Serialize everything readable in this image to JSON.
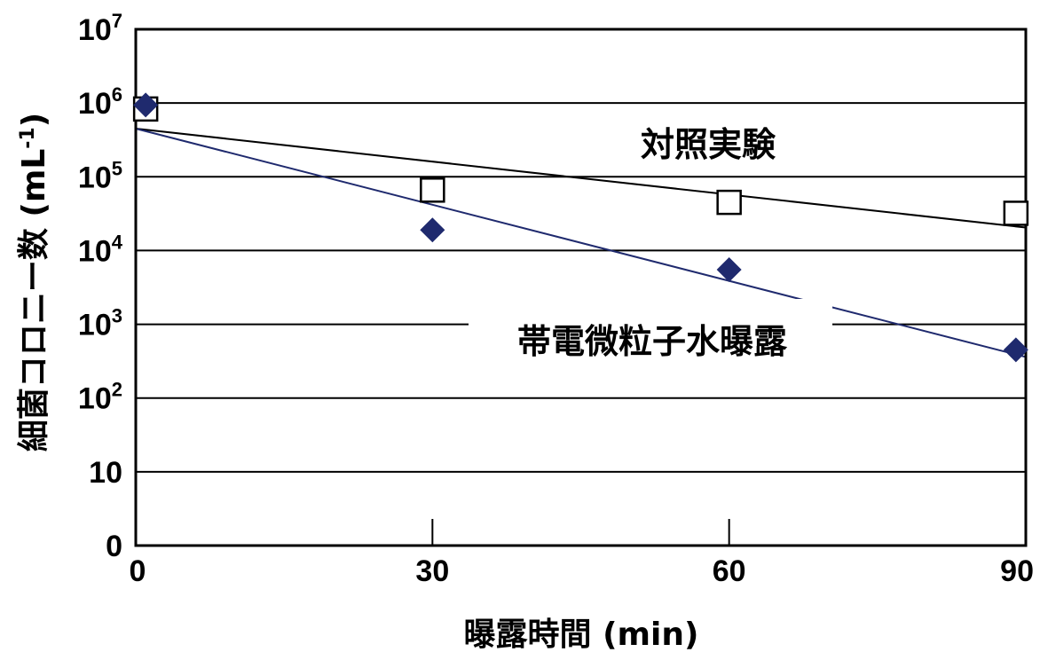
{
  "chart_data": {
    "type": "scatter",
    "xlabel": "曝露時間 (min)",
    "ylabel": "細菌コロニー数 (mL-1)",
    "ylabel_unit_base": "細菌コロニー数 (mL",
    "ylabel_unit_exp": "-1",
    "ylabel_unit_close": ")",
    "x_ticks": [
      "0",
      "30",
      "60",
      "90"
    ],
    "x_tick_values": [
      0,
      30,
      60,
      90
    ],
    "xlim": [
      0,
      90
    ],
    "y_scale": "log",
    "y_ticks": [
      {
        "value": 1,
        "base": "0",
        "exp": ""
      },
      {
        "value": 10,
        "base": "10",
        "exp": ""
      },
      {
        "value": 100,
        "base": "10",
        "exp": "2"
      },
      {
        "value": 1000,
        "base": "10",
        "exp": "3"
      },
      {
        "value": 10000,
        "base": "10",
        "exp": "4"
      },
      {
        "value": 100000,
        "base": "10",
        "exp": "5"
      },
      {
        "value": 1000000,
        "base": "10",
        "exp": "6"
      },
      {
        "value": 10000000,
        "base": "10",
        "exp": "7"
      }
    ],
    "ylim": [
      1,
      10000000
    ],
    "grid": "horizontal",
    "series": [
      {
        "name": "対照実験",
        "marker": "square",
        "color": "#000000",
        "points": [
          {
            "x": 1,
            "y": 830000
          },
          {
            "x": 30,
            "y": 66000
          },
          {
            "x": 60,
            "y": 45000
          },
          {
            "x": 89,
            "y": 32000
          }
        ],
        "trend": {
          "from": [
            0,
            450000
          ],
          "to": [
            90,
            20500
          ]
        }
      },
      {
        "name": "帯電微粒子水曝露",
        "marker": "diamond",
        "color": "#1f2a6e",
        "points": [
          {
            "x": 1,
            "y": 940000
          },
          {
            "x": 30,
            "y": 19000
          },
          {
            "x": 60,
            "y": 5500
          },
          {
            "x": 89,
            "y": 450
          }
        ],
        "trend": {
          "from": [
            0,
            450000
          ],
          "to": [
            90,
            360
          ]
        }
      }
    ],
    "annotations": [
      {
        "text": "対照実験"
      },
      {
        "text": "帯電微粒子水曝露"
      }
    ]
  },
  "colors": {
    "control": "#000000",
    "treated": "#1f2a6e",
    "grid": "#000000"
  }
}
